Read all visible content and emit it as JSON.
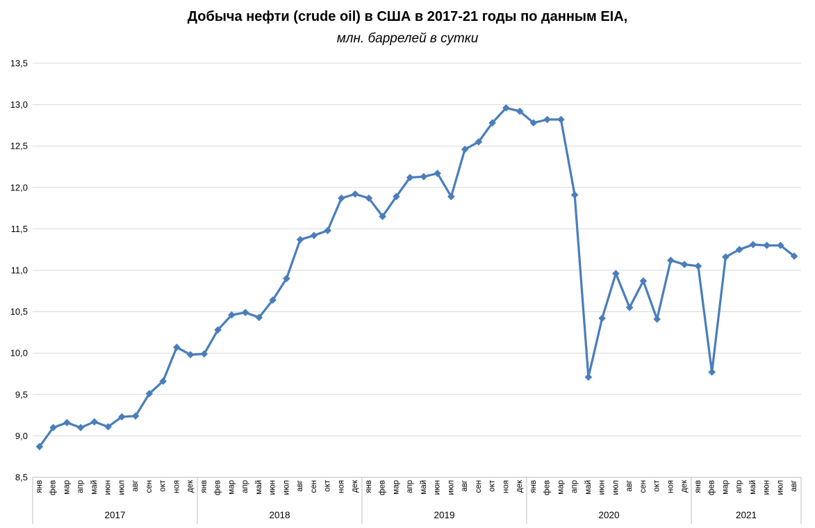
{
  "chart_data": {
    "type": "line",
    "title": "Добыча нефти (crude oil) в США в 2017-21 годы по данным EIA,",
    "subtitle": "млн. баррелей в сутки",
    "ylim": [
      8.5,
      13.5
    ],
    "ytick_step": 0.5,
    "yticks": [
      "8,5",
      "9,0",
      "9,5",
      "10,0",
      "10,5",
      "11,0",
      "11,5",
      "12,0",
      "12,5",
      "13,0",
      "13,5"
    ],
    "grid": true,
    "legend": "none",
    "marker": "diamond",
    "colors": {
      "line": "#4a7ebb",
      "grid": "#d9d9d9",
      "axis": "#bfbfbf",
      "text": "#000000"
    },
    "groups": [
      {
        "year": "2017",
        "months": [
          "янв",
          "фев",
          "мар",
          "апр",
          "май",
          "июн",
          "июл",
          "авг",
          "сен",
          "окт",
          "ноя",
          "дек"
        ],
        "values": [
          8.87,
          9.1,
          9.16,
          9.1,
          9.17,
          9.11,
          9.23,
          9.24,
          9.51,
          9.66,
          10.07,
          9.98
        ]
      },
      {
        "year": "2018",
        "months": [
          "янв",
          "фев",
          "мар",
          "апр",
          "май",
          "июн",
          "июл",
          "авг",
          "сен",
          "окт",
          "ноя",
          "дек"
        ],
        "values": [
          9.99,
          10.28,
          10.46,
          10.49,
          10.43,
          10.64,
          10.9,
          11.37,
          11.42,
          11.48,
          11.87,
          11.92
        ]
      },
      {
        "year": "2019",
        "months": [
          "янв",
          "фев",
          "мар",
          "апр",
          "май",
          "июн",
          "июл",
          "авг",
          "сен",
          "окт",
          "ноя",
          "дек"
        ],
        "values": [
          11.87,
          11.65,
          11.89,
          12.12,
          12.13,
          12.17,
          11.89,
          12.46,
          12.55,
          12.78,
          12.96,
          12.92
        ]
      },
      {
        "year": "2020",
        "months": [
          "янв",
          "фев",
          "мар",
          "апр",
          "май",
          "июн",
          "июл",
          "авг",
          "сен",
          "окт",
          "ноя",
          "дек"
        ],
        "values": [
          12.78,
          12.82,
          12.82,
          11.91,
          9.71,
          10.42,
          10.96,
          10.55,
          10.87,
          10.41,
          11.12,
          11.07
        ]
      },
      {
        "year": "2021",
        "months": [
          "янв",
          "фев",
          "мар",
          "апр",
          "май",
          "июн",
          "июл",
          "авг"
        ],
        "values": [
          11.05,
          9.77,
          11.16,
          11.25,
          11.31,
          11.3,
          11.3,
          11.17
        ]
      }
    ],
    "series": [
      {
        "name": "Добыча нефти, млн. баррелей в сутки",
        "values": [
          8.87,
          9.1,
          9.16,
          9.1,
          9.17,
          9.11,
          9.23,
          9.24,
          9.51,
          9.66,
          10.07,
          9.98,
          9.99,
          10.28,
          10.46,
          10.49,
          10.43,
          10.64,
          10.9,
          11.37,
          11.42,
          11.48,
          11.87,
          11.92,
          11.87,
          11.65,
          11.89,
          12.12,
          12.13,
          12.17,
          11.89,
          12.46,
          12.55,
          12.78,
          12.96,
          12.92,
          12.78,
          12.82,
          12.82,
          11.91,
          9.71,
          10.42,
          10.96,
          10.55,
          10.87,
          10.41,
          11.12,
          11.07,
          11.05,
          9.77,
          11.16,
          11.25,
          11.31,
          11.3,
          11.3,
          11.17
        ]
      }
    ]
  }
}
